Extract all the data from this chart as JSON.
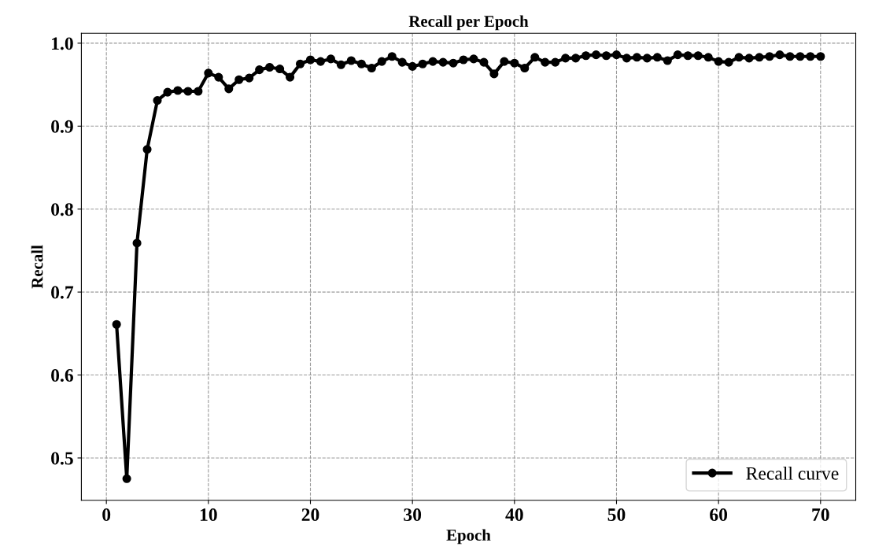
{
  "chart_data": {
    "type": "line",
    "title": "Recall per Epoch",
    "xlabel": "Epoch",
    "ylabel": "Recall",
    "x": [
      1,
      2,
      3,
      4,
      5,
      6,
      7,
      8,
      9,
      10,
      11,
      12,
      13,
      14,
      15,
      16,
      17,
      18,
      19,
      20,
      21,
      22,
      23,
      24,
      25,
      26,
      27,
      28,
      29,
      30,
      31,
      32,
      33,
      34,
      35,
      36,
      37,
      38,
      39,
      40,
      41,
      42,
      43,
      44,
      45,
      46,
      47,
      48,
      49,
      50,
      51,
      52,
      53,
      54,
      55,
      56,
      57,
      58,
      59,
      60,
      61,
      62,
      63,
      64,
      65,
      66,
      67,
      68,
      69,
      70
    ],
    "series": [
      {
        "name": "Recall curve",
        "color": "#000000",
        "values": [
          0.661,
          0.475,
          0.759,
          0.872,
          0.931,
          0.941,
          0.943,
          0.942,
          0.942,
          0.964,
          0.959,
          0.945,
          0.956,
          0.958,
          0.968,
          0.971,
          0.969,
          0.959,
          0.975,
          0.98,
          0.978,
          0.981,
          0.974,
          0.979,
          0.975,
          0.97,
          0.978,
          0.984,
          0.977,
          0.972,
          0.975,
          0.978,
          0.977,
          0.976,
          0.98,
          0.981,
          0.977,
          0.963,
          0.978,
          0.976,
          0.97,
          0.983,
          0.977,
          0.977,
          0.982,
          0.982,
          0.985,
          0.986,
          0.985,
          0.986,
          0.982,
          0.983,
          0.982,
          0.983,
          0.979,
          0.986,
          0.985,
          0.985,
          0.983,
          0.978,
          0.977,
          0.983,
          0.982,
          0.983,
          0.984,
          0.986,
          0.984,
          0.984,
          0.984,
          0.984
        ]
      }
    ],
    "xlim": [
      -2.45,
      73.45
    ],
    "ylim": [
      0.449,
      1.012
    ],
    "xticks": [
      0,
      10,
      20,
      30,
      40,
      50,
      60,
      70
    ],
    "yticks": [
      {
        "value": 0.5,
        "label": "0.5"
      },
      {
        "value": 0.6,
        "label": "0.6"
      },
      {
        "value": 0.7,
        "label": "0.7"
      },
      {
        "value": 0.8,
        "label": "0.8"
      },
      {
        "value": 0.9,
        "label": "0.9"
      },
      {
        "value": 1.0,
        "label": "1.0"
      }
    ],
    "grid": true,
    "legend": "bottom right",
    "marker": "circle",
    "line_style": "solid"
  }
}
